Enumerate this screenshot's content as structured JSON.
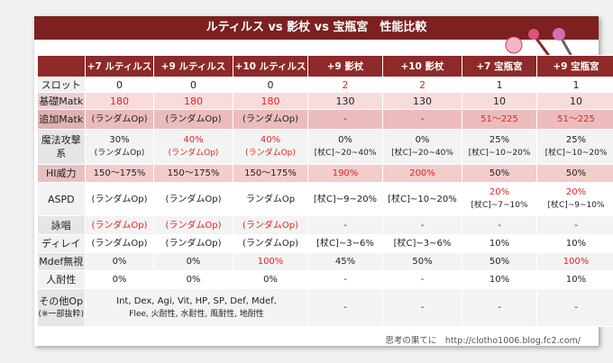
{
  "header": {
    "title": "ルティルス vs 影杖 vs 宝瓶宮　性能比較"
  },
  "table": {
    "columns": [
      "+7 ルティルス",
      "+9 ルティルス",
      "+10 ルティルス",
      "+9 影杖",
      "+10 影杖",
      "+7 宝瓶宮",
      "+9 宝瓶宮"
    ],
    "red": "#e02424",
    "rows": [
      {
        "label": "スロット",
        "bg": "#ffffff",
        "cells": [
          "0",
          "0",
          "0",
          {
            "text": "2",
            "color": "#e02424"
          },
          {
            "text": "2",
            "color": "#e02424"
          },
          "1",
          "1"
        ]
      },
      {
        "label": "基礎Matk",
        "bg": "#f8dcdc",
        "cells": [
          {
            "text": "180",
            "color": "#e02424"
          },
          {
            "text": "180",
            "color": "#e02424"
          },
          {
            "text": "180",
            "color": "#e02424"
          },
          "130",
          "130",
          "10",
          "10"
        ]
      },
      {
        "label": "追加Matk",
        "bg": "#ecbcbc",
        "cells": [
          "(ランダムOp)",
          "(ランダムOp)",
          "(ランダムOp)",
          "-",
          "-",
          {
            "text": "51〜225",
            "color": "#e02424"
          },
          {
            "text": "51〜225",
            "color": "#e02424"
          }
        ]
      },
      {
        "label": "魔法攻撃系",
        "bg": "#f3f3f3",
        "cells": [
          {
            "lines": [
              "30%",
              "(ランダムOp)"
            ]
          },
          {
            "lines": [
              {
                "text": "40%",
                "color": "#e02424"
              },
              {
                "text": "(ランダムOp)",
                "color": "#e02424"
              }
            ]
          },
          {
            "lines": [
              {
                "text": "40%",
                "color": "#e02424"
              },
              {
                "text": "(ランダムOp)",
                "color": "#e02424"
              }
            ]
          },
          {
            "lines": [
              "0%",
              "[杖C]~20~40%"
            ]
          },
          {
            "lines": [
              "0%",
              "[杖C]~20~40%"
            ]
          },
          {
            "lines": [
              "25%",
              "[杖C]~10~20%"
            ]
          },
          {
            "lines": [
              "25%",
              "[杖C]~10~20%"
            ]
          }
        ]
      },
      {
        "label": "HI威力",
        "bg": "#f3cccc",
        "cells": [
          "150〜175%",
          "150〜175%",
          "150〜175%",
          {
            "text": "190%",
            "color": "#e02424"
          },
          {
            "text": "200%",
            "color": "#e02424"
          },
          "50%",
          "50%"
        ]
      },
      {
        "label": "ASPD",
        "bg": "#ffffff",
        "cells": [
          "(ランダムOp)",
          "(ランダムOp)",
          "ランダムOp",
          "[杖C]~9~20%",
          "[杖C]~10~20%",
          {
            "lines": [
              {
                "text": "20%",
                "color": "#e02424"
              },
              "[杖C]~7~10%"
            ]
          },
          {
            "lines": [
              {
                "text": "20%",
                "color": "#e02424"
              },
              "[杖C]~9~10%"
            ]
          }
        ]
      },
      {
        "label": "詠唱",
        "bg": "#f3f3f3",
        "cells": [
          {
            "text": "(ランダムOp)",
            "color": "#e02424"
          },
          {
            "text": "(ランダムOp)",
            "color": "#e02424"
          },
          {
            "text": "(ランダムOp)",
            "color": "#e02424"
          },
          "-",
          "-",
          "-",
          "-"
        ]
      },
      {
        "label": "ディレイ",
        "bg": "#ffffff",
        "cells": [
          "(ランダムOp)",
          "(ランダムOp)",
          "(ランダムOp)",
          "[杖C]~3~6%",
          "[杖C]~3~6%",
          "10%",
          "10%"
        ]
      },
      {
        "label": "Mdef無視",
        "bg": "#f3f3f3",
        "cells": [
          "0%",
          "0%",
          {
            "text": "100%",
            "color": "#e02424"
          },
          "45%",
          "50%",
          "50%",
          {
            "text": "100%",
            "color": "#e02424"
          }
        ]
      },
      {
        "label": "人耐性",
        "bg": "#ffffff",
        "cells": [
          "0%",
          "0%",
          "0%",
          "-",
          "-",
          "10%",
          "10%"
        ]
      },
      {
        "label": {
          "lines": [
            "その他Op",
            "(※一部抜粋)"
          ]
        },
        "bg": "#f3f3f3",
        "cells": [
          {
            "lines": [
              "Int, Dex, Agi, Vit, HP, SP, Def, Mdef,",
              "Flee, 火耐性, 水耐性, 風耐性, 地耐性"
            ],
            "colspan": 3
          },
          "-",
          "-",
          "-",
          "-"
        ]
      }
    ]
  },
  "footer": {
    "credit": "思考の果てに　http://clotho1006.blog.fc2.com/"
  }
}
